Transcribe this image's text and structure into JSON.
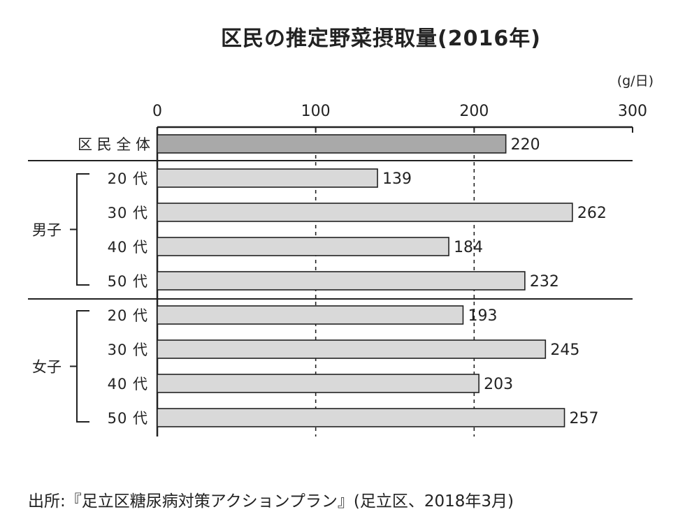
{
  "chart_data": {
    "type": "bar",
    "orientation": "horizontal",
    "title": "区民の推定野菜摂取量(2016年)",
    "unit": "(g/日)",
    "xlim": [
      0,
      300
    ],
    "xticks": [
      0,
      100,
      200,
      300
    ],
    "grid": "dashed vertical at 100 and 200",
    "categories": [
      {
        "label": "区 民 全 体",
        "group": "",
        "value": 220,
        "highlight": true
      },
      {
        "label": "20 代",
        "group": "男子",
        "value": 139
      },
      {
        "label": "30 代",
        "group": "男子",
        "value": 262
      },
      {
        "label": "40 代",
        "group": "男子",
        "value": 184
      },
      {
        "label": "50 代",
        "group": "男子",
        "value": 232
      },
      {
        "label": "20 代",
        "group": "女子",
        "value": 193
      },
      {
        "label": "30 代",
        "group": "女子",
        "value": 245
      },
      {
        "label": "40 代",
        "group": "女子",
        "value": 203
      },
      {
        "label": "50 代",
        "group": "女子",
        "value": 257
      }
    ],
    "groups": [
      "男子",
      "女子"
    ],
    "colors": {
      "highlight_bar": "#a9a9a9",
      "bar": "#d9d9d9",
      "stroke": "#222222"
    }
  },
  "source": "出所:『足立区糖尿病対策アクションプラン』(足立区、2018年3月)"
}
